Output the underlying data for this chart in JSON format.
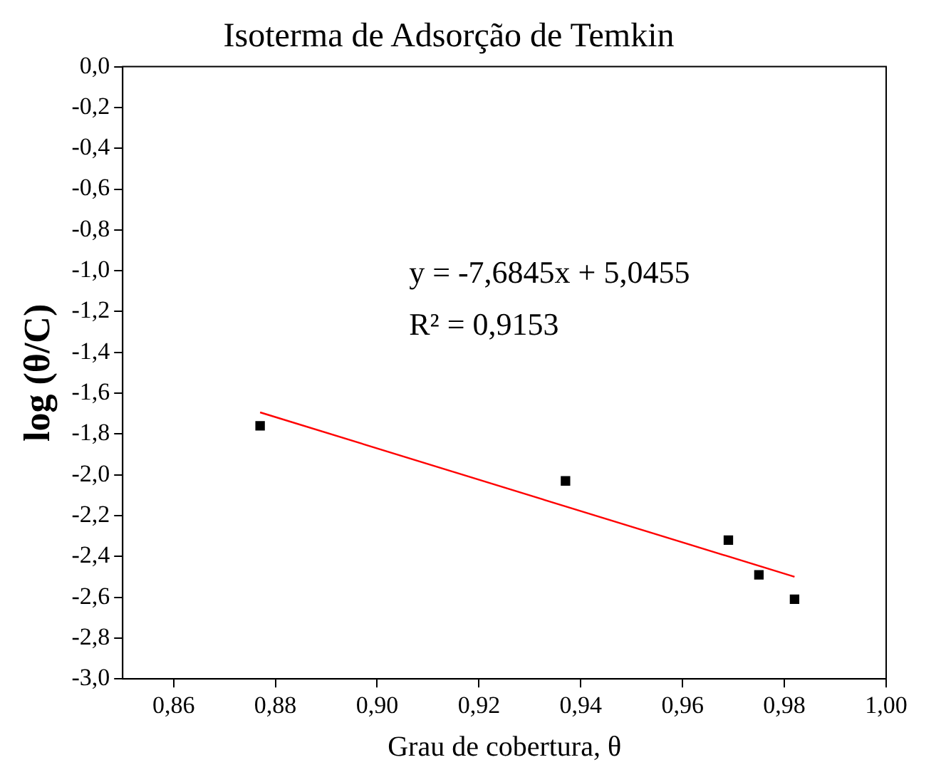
{
  "chart_data": {
    "type": "scatter",
    "title": "Isoterma de Adsorção de Temkin",
    "xlabel": "Grau de cobertura, θ",
    "ylabel": "log (θ/C)",
    "series": [
      {
        "type": "scatter",
        "color": "#000000",
        "marker": "square",
        "x": [
          0.877,
          0.937,
          0.969,
          0.975,
          0.982
        ],
        "values": [
          -1.76,
          -2.03,
          -2.32,
          -2.49,
          -2.61
        ]
      },
      {
        "type": "line",
        "color": "#ff0000",
        "marker": "none",
        "line_style": "solid",
        "x": [
          0.877,
          0.982
        ],
        "values": [
          -1.694,
          -2.5
        ]
      }
    ],
    "xlim": [
      0.85,
      1.0
    ],
    "xticks": [
      {
        "value": 0.86,
        "label": "0,86"
      },
      {
        "value": 0.88,
        "label": "0,88"
      },
      {
        "value": 0.9,
        "label": "0,90"
      },
      {
        "value": 0.92,
        "label": "0,92"
      },
      {
        "value": 0.94,
        "label": "0,94"
      },
      {
        "value": 0.96,
        "label": "0,96"
      },
      {
        "value": 0.98,
        "label": "0,98"
      },
      {
        "value": 1.0,
        "label": "1,00"
      }
    ],
    "ylim": [
      -3.0,
      0.0
    ],
    "yticks": [
      {
        "value": -3.0,
        "label": "-3,0"
      },
      {
        "value": -2.8,
        "label": "-2,8"
      },
      {
        "value": -2.6,
        "label": "-2,6"
      },
      {
        "value": -2.4,
        "label": "-2,4"
      },
      {
        "value": -2.2,
        "label": "-2,2"
      },
      {
        "value": -2.0,
        "label": "-2,0"
      },
      {
        "value": -1.8,
        "label": "-1,8"
      },
      {
        "value": -1.6,
        "label": "-1,6"
      },
      {
        "value": -1.4,
        "label": "-1,4"
      },
      {
        "value": -1.2,
        "label": "-1,2"
      },
      {
        "value": -1.0,
        "label": "-1,0"
      },
      {
        "value": -0.8,
        "label": "-0,8"
      },
      {
        "value": -0.6,
        "label": "-0,6"
      },
      {
        "value": -0.4,
        "label": "-0,4"
      },
      {
        "value": -0.2,
        "label": "-0,2"
      },
      {
        "value": 0.0,
        "label": "0,0"
      }
    ],
    "annotations": [
      "y = -7,6845x + 5,0455",
      "R² = 0,9153"
    ],
    "grid": false,
    "legend": false
  }
}
